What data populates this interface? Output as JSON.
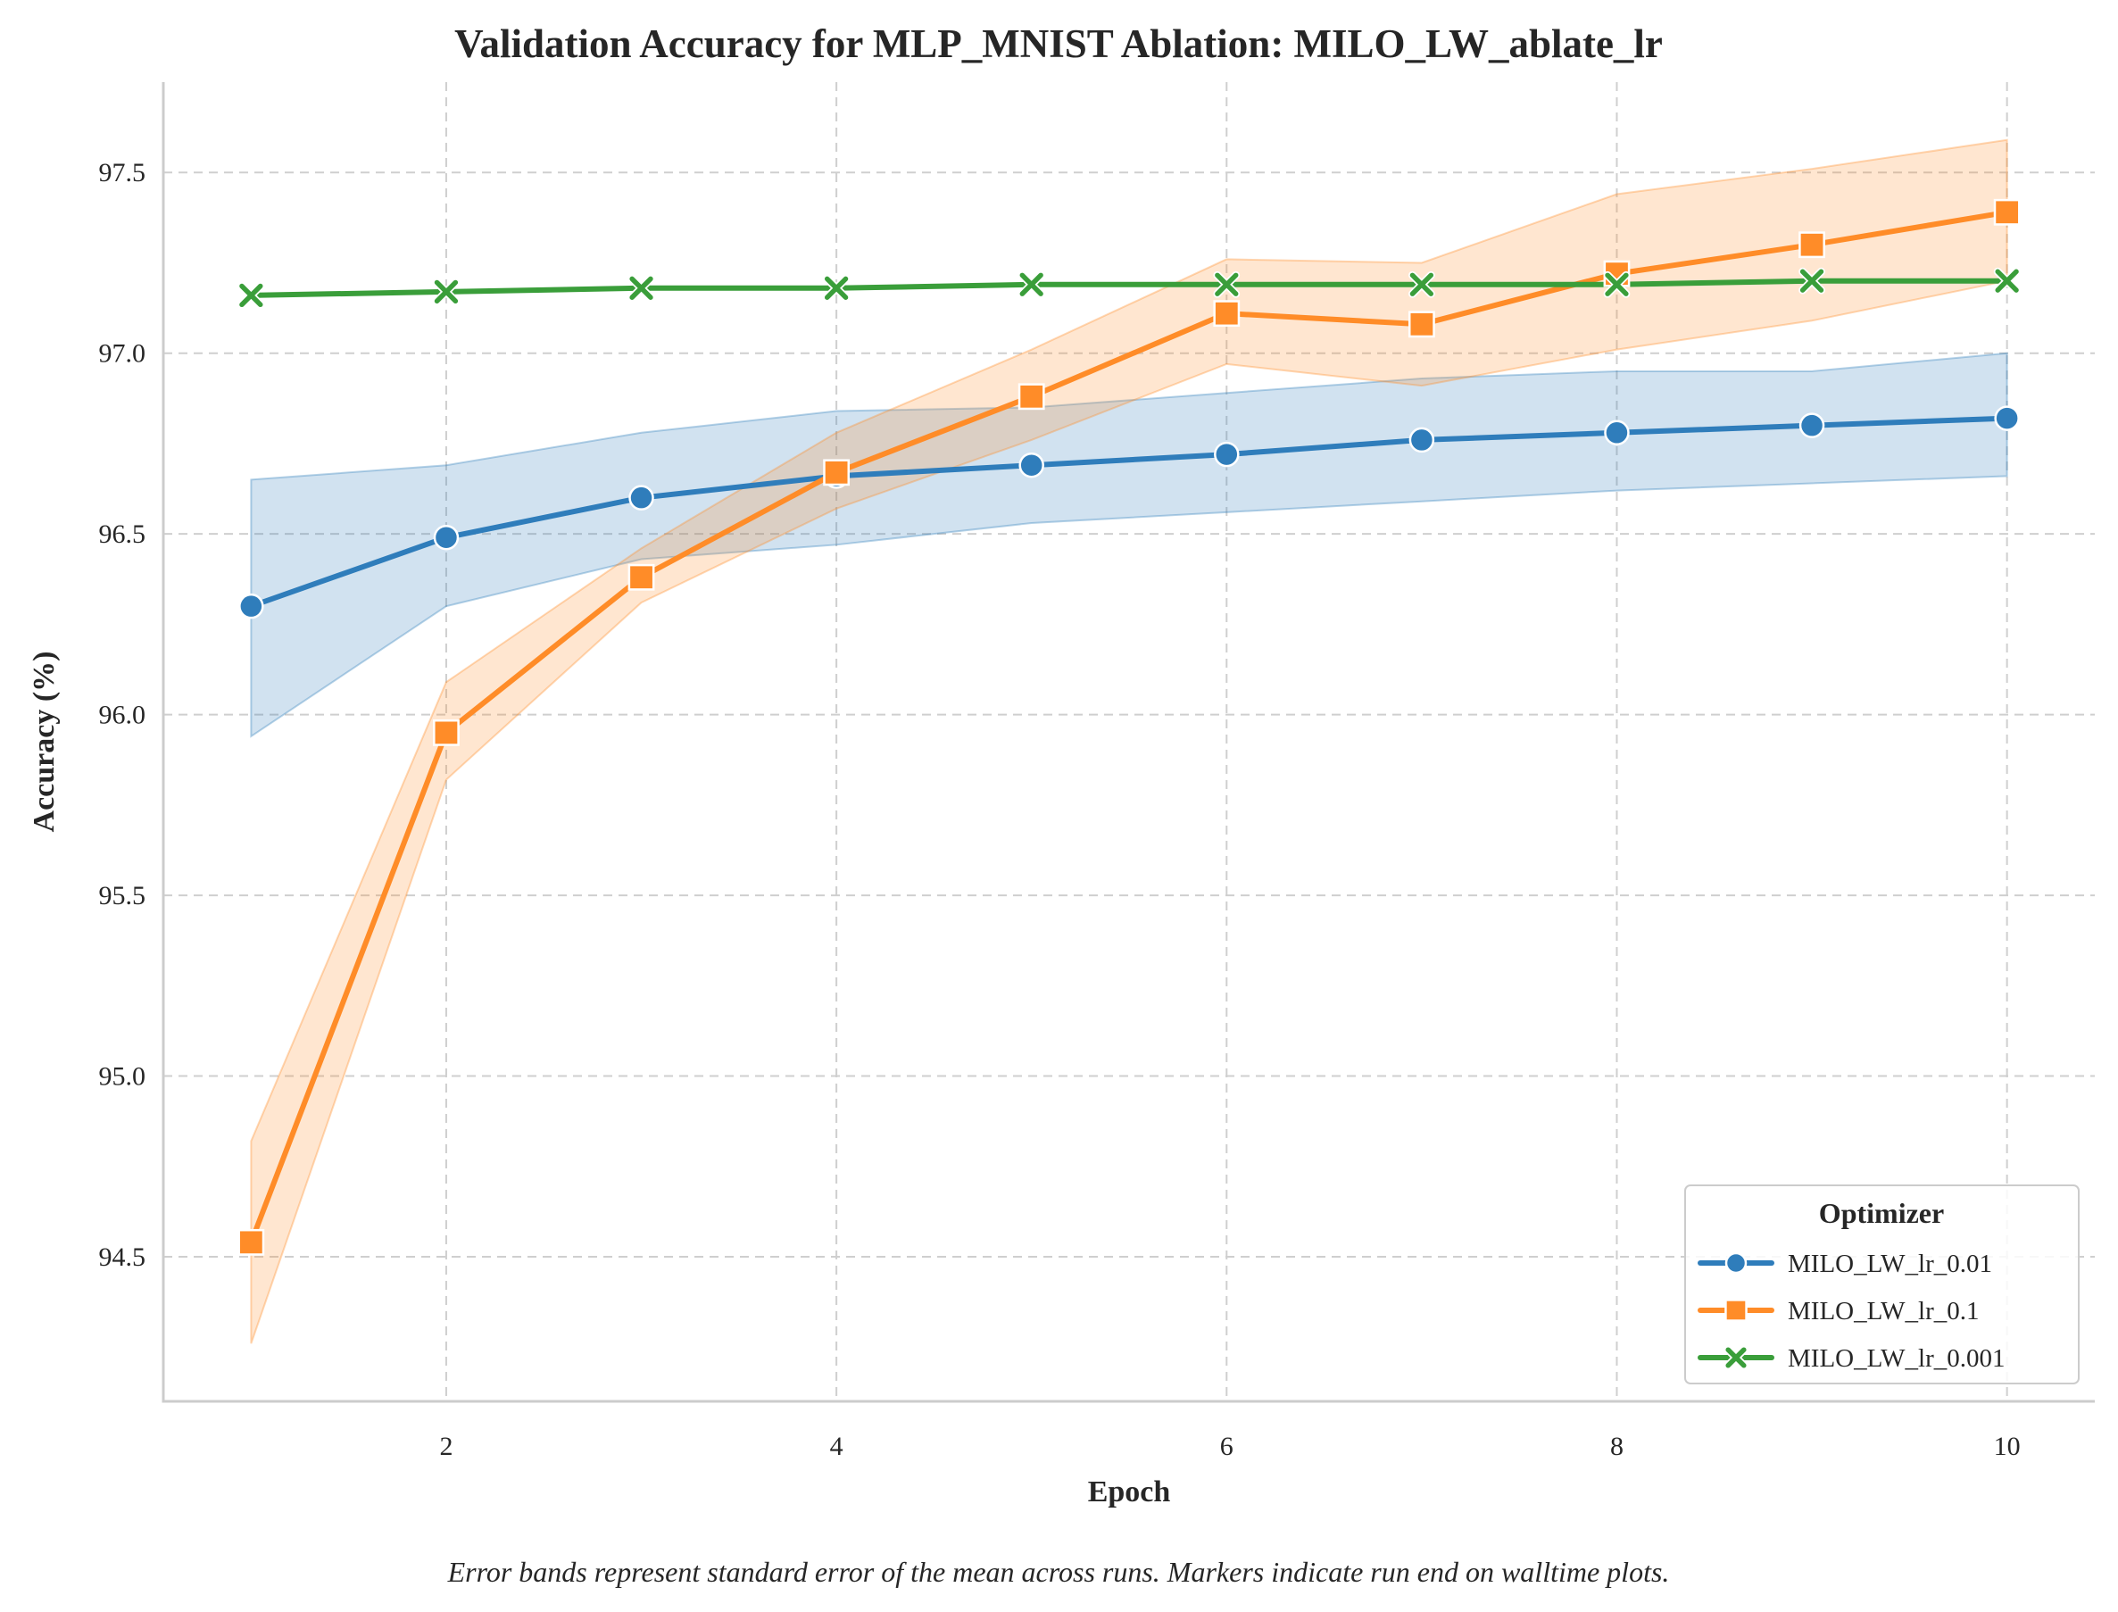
{
  "chart_data": {
    "type": "line",
    "title": "Validation Accuracy for MLP_MNIST Ablation: MILO_LW_ablate_lr",
    "xlabel": "Epoch",
    "ylabel": "Accuracy (%)",
    "xlim": [
      0.55,
      10.45
    ],
    "ylim": [
      94.1,
      97.75
    ],
    "xticks": [
      2,
      4,
      6,
      8,
      10
    ],
    "yticks": [
      94.5,
      95.0,
      95.5,
      96.0,
      96.5,
      97.0,
      97.5
    ],
    "ytick_labels": [
      "94.5",
      "95.0",
      "95.5",
      "96.0",
      "96.5",
      "97.0",
      "97.5"
    ],
    "grid": true,
    "legend": {
      "title": "Optimizer",
      "placement": "lower-right"
    },
    "caption": "Error bands represent standard error of the mean across runs. Markers indicate run end on walltime plots.",
    "x": [
      1,
      2,
      3,
      4,
      5,
      6,
      7,
      8,
      9,
      10
    ],
    "series": [
      {
        "name": "MILO_LW_lr_0.01",
        "color": "#2f7dbb",
        "marker": "circle",
        "values": [
          96.3,
          96.49,
          96.6,
          96.66,
          96.69,
          96.72,
          96.76,
          96.78,
          96.8,
          96.82
        ],
        "lower": [
          95.94,
          96.3,
          96.43,
          96.47,
          96.53,
          96.56,
          96.59,
          96.62,
          96.64,
          96.66
        ],
        "upper": [
          96.65,
          96.69,
          96.78,
          96.84,
          96.85,
          96.89,
          96.93,
          96.95,
          96.95,
          97.0
        ]
      },
      {
        "name": "MILO_LW_lr_0.1",
        "color": "#ff8c28",
        "marker": "square",
        "values": [
          94.54,
          95.95,
          96.38,
          96.67,
          96.88,
          97.11,
          97.08,
          97.22,
          97.3,
          97.39
        ],
        "lower": [
          94.26,
          95.82,
          96.31,
          96.57,
          96.76,
          96.97,
          96.91,
          97.01,
          97.09,
          97.2
        ],
        "upper": [
          94.82,
          96.09,
          96.46,
          96.78,
          97.01,
          97.26,
          97.25,
          97.44,
          97.51,
          97.59
        ]
      },
      {
        "name": "MILO_LW_lr_0.001",
        "color": "#3a9e3a",
        "marker": "x",
        "values": [
          97.16,
          97.17,
          97.18,
          97.18,
          97.19,
          97.19,
          97.19,
          97.19,
          97.2,
          97.2
        ]
      }
    ]
  }
}
